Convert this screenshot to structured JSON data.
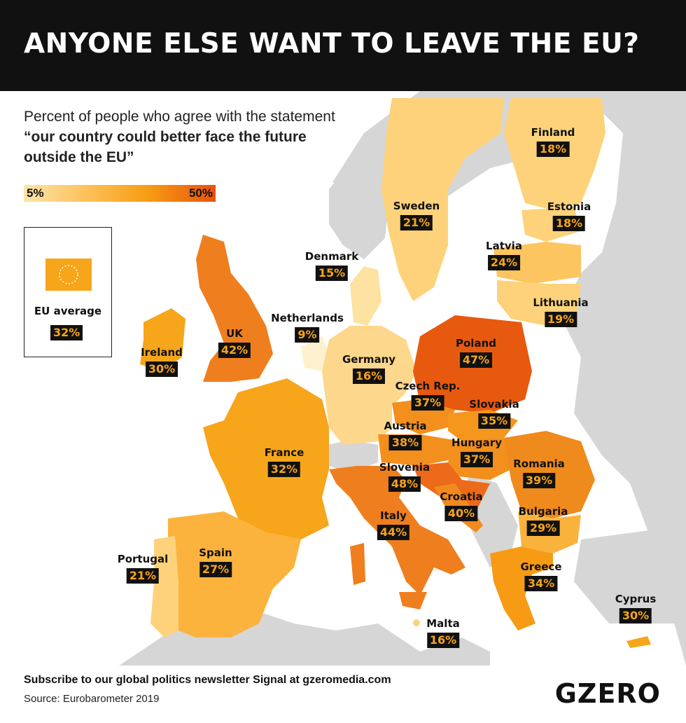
{
  "header": {
    "title": "ANYONE ELSE WANT TO LEAVE THE EU?"
  },
  "intro": {
    "line_start": "Percent of people who agree with the statement ",
    "quote": "“our country could better face the future outside the EU”"
  },
  "scale": {
    "min_label": "5%",
    "max_label": "50%",
    "colors": [
      "#fde5a8",
      "#fbb33e",
      "#f79b14",
      "#e7520d"
    ]
  },
  "eu_average": {
    "label": "EU average",
    "value": "32%"
  },
  "countries": [
    {
      "name": "Finland",
      "value": "18%"
    },
    {
      "name": "Sweden",
      "value": "21%"
    },
    {
      "name": "Estonia",
      "value": "18%"
    },
    {
      "name": "Latvia",
      "value": "24%"
    },
    {
      "name": "Denmark",
      "value": "15%"
    },
    {
      "name": "Lithuania",
      "value": "19%"
    },
    {
      "name": "Netherlands",
      "value": "9%"
    },
    {
      "name": "UK",
      "value": "42%"
    },
    {
      "name": "Ireland",
      "value": "30%"
    },
    {
      "name": "Poland",
      "value": "47%"
    },
    {
      "name": "Germany",
      "value": "16%"
    },
    {
      "name": "Czech Rep.",
      "value": "37%"
    },
    {
      "name": "Slovakia",
      "value": "35%"
    },
    {
      "name": "Austria",
      "value": "38%"
    },
    {
      "name": "Hungary",
      "value": "37%"
    },
    {
      "name": "France",
      "value": "32%"
    },
    {
      "name": "Slovenia",
      "value": "48%"
    },
    {
      "name": "Romania",
      "value": "39%"
    },
    {
      "name": "Croatia",
      "value": "40%"
    },
    {
      "name": "Italy",
      "value": "44%"
    },
    {
      "name": "Bulgaria",
      "value": "29%"
    },
    {
      "name": "Portugal",
      "value": "21%"
    },
    {
      "name": "Spain",
      "value": "27%"
    },
    {
      "name": "Greece",
      "value": "34%"
    },
    {
      "name": "Cyprus",
      "value": "30%"
    },
    {
      "name": "Malta",
      "value": "16%"
    }
  ],
  "footer": {
    "subscribe": "Subscribe to our global politics newsletter Signal at gzeromedia.com",
    "source": "Source: Eurobarometer 2019",
    "logo": "GZERO"
  }
}
